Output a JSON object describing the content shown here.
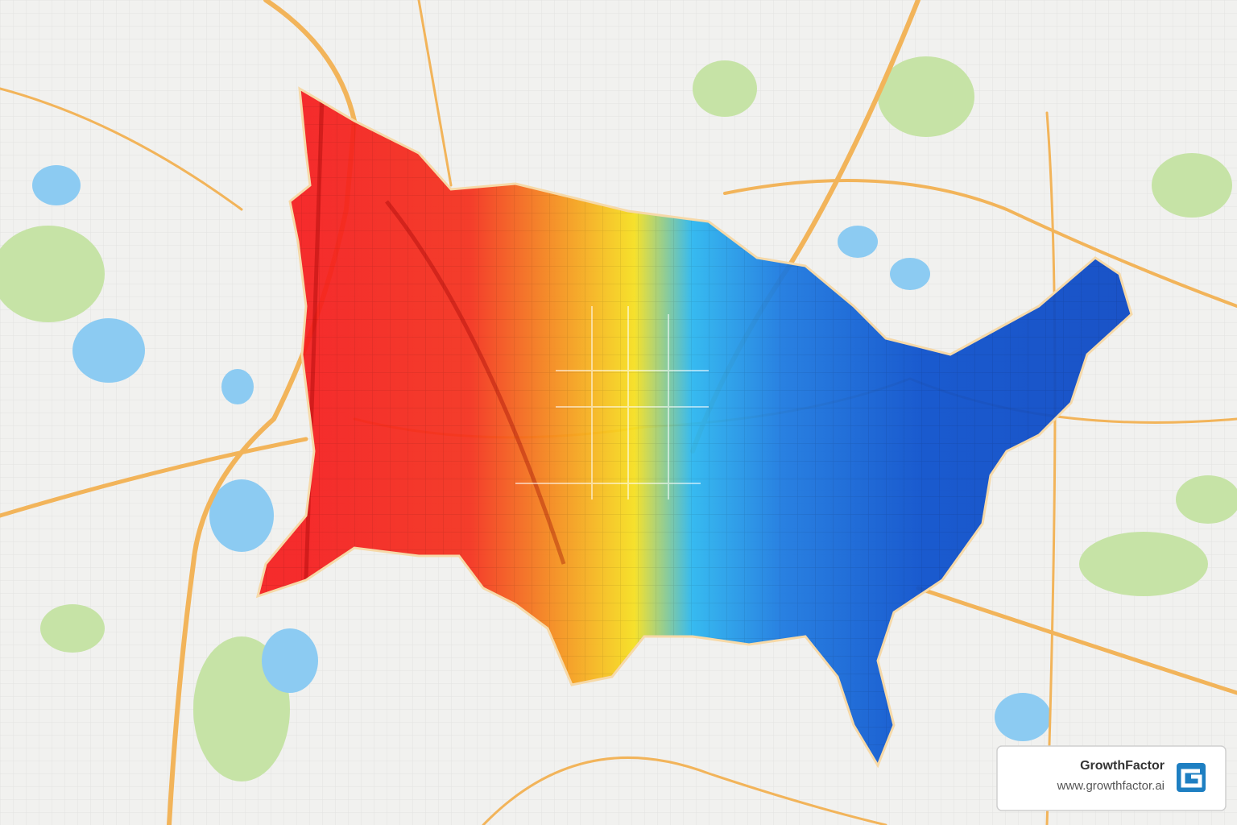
{
  "brand": {
    "name": "GrowthFactor",
    "url": "www.growthfactor.ai"
  }
}
